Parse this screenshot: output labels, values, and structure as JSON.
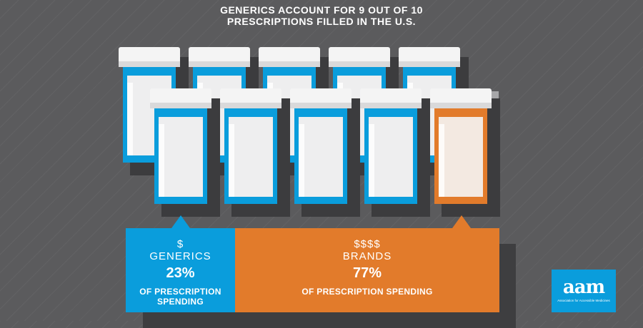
{
  "title": {
    "line1": "GENERICS ACCOUNT FOR 9 OUT OF 10",
    "line2": "PRESCRIPTIONS FILLED IN THE U.S."
  },
  "colors": {
    "generic": "#0a9ddc",
    "brand": "#e27b2b",
    "background": "#5b5b5d"
  },
  "chart_data": {
    "type": "bar",
    "title": "GENERICS ACCOUNT FOR 9 OUT OF 10 PRESCRIPTIONS FILLED IN THE U.S.",
    "prescriptions": {
      "total_bottles": 10,
      "generic": 9,
      "brand": 1
    },
    "categories": [
      "GENERICS",
      "BRANDS"
    ],
    "values": [
      23,
      77
    ],
    "unit": "%",
    "labels": {
      "generics": {
        "symbol": "$",
        "name": "GENERICS",
        "value": "23%",
        "description": "OF PRESCRIPTION SPENDING"
      },
      "brands": {
        "symbol": "$$$$",
        "name": "BRANDS",
        "value": "77%",
        "description": "OF PRESCRIPTION SPENDING"
      }
    }
  },
  "logo": {
    "word": "aam",
    "subtitle": "Association for Accessible Medicines"
  }
}
